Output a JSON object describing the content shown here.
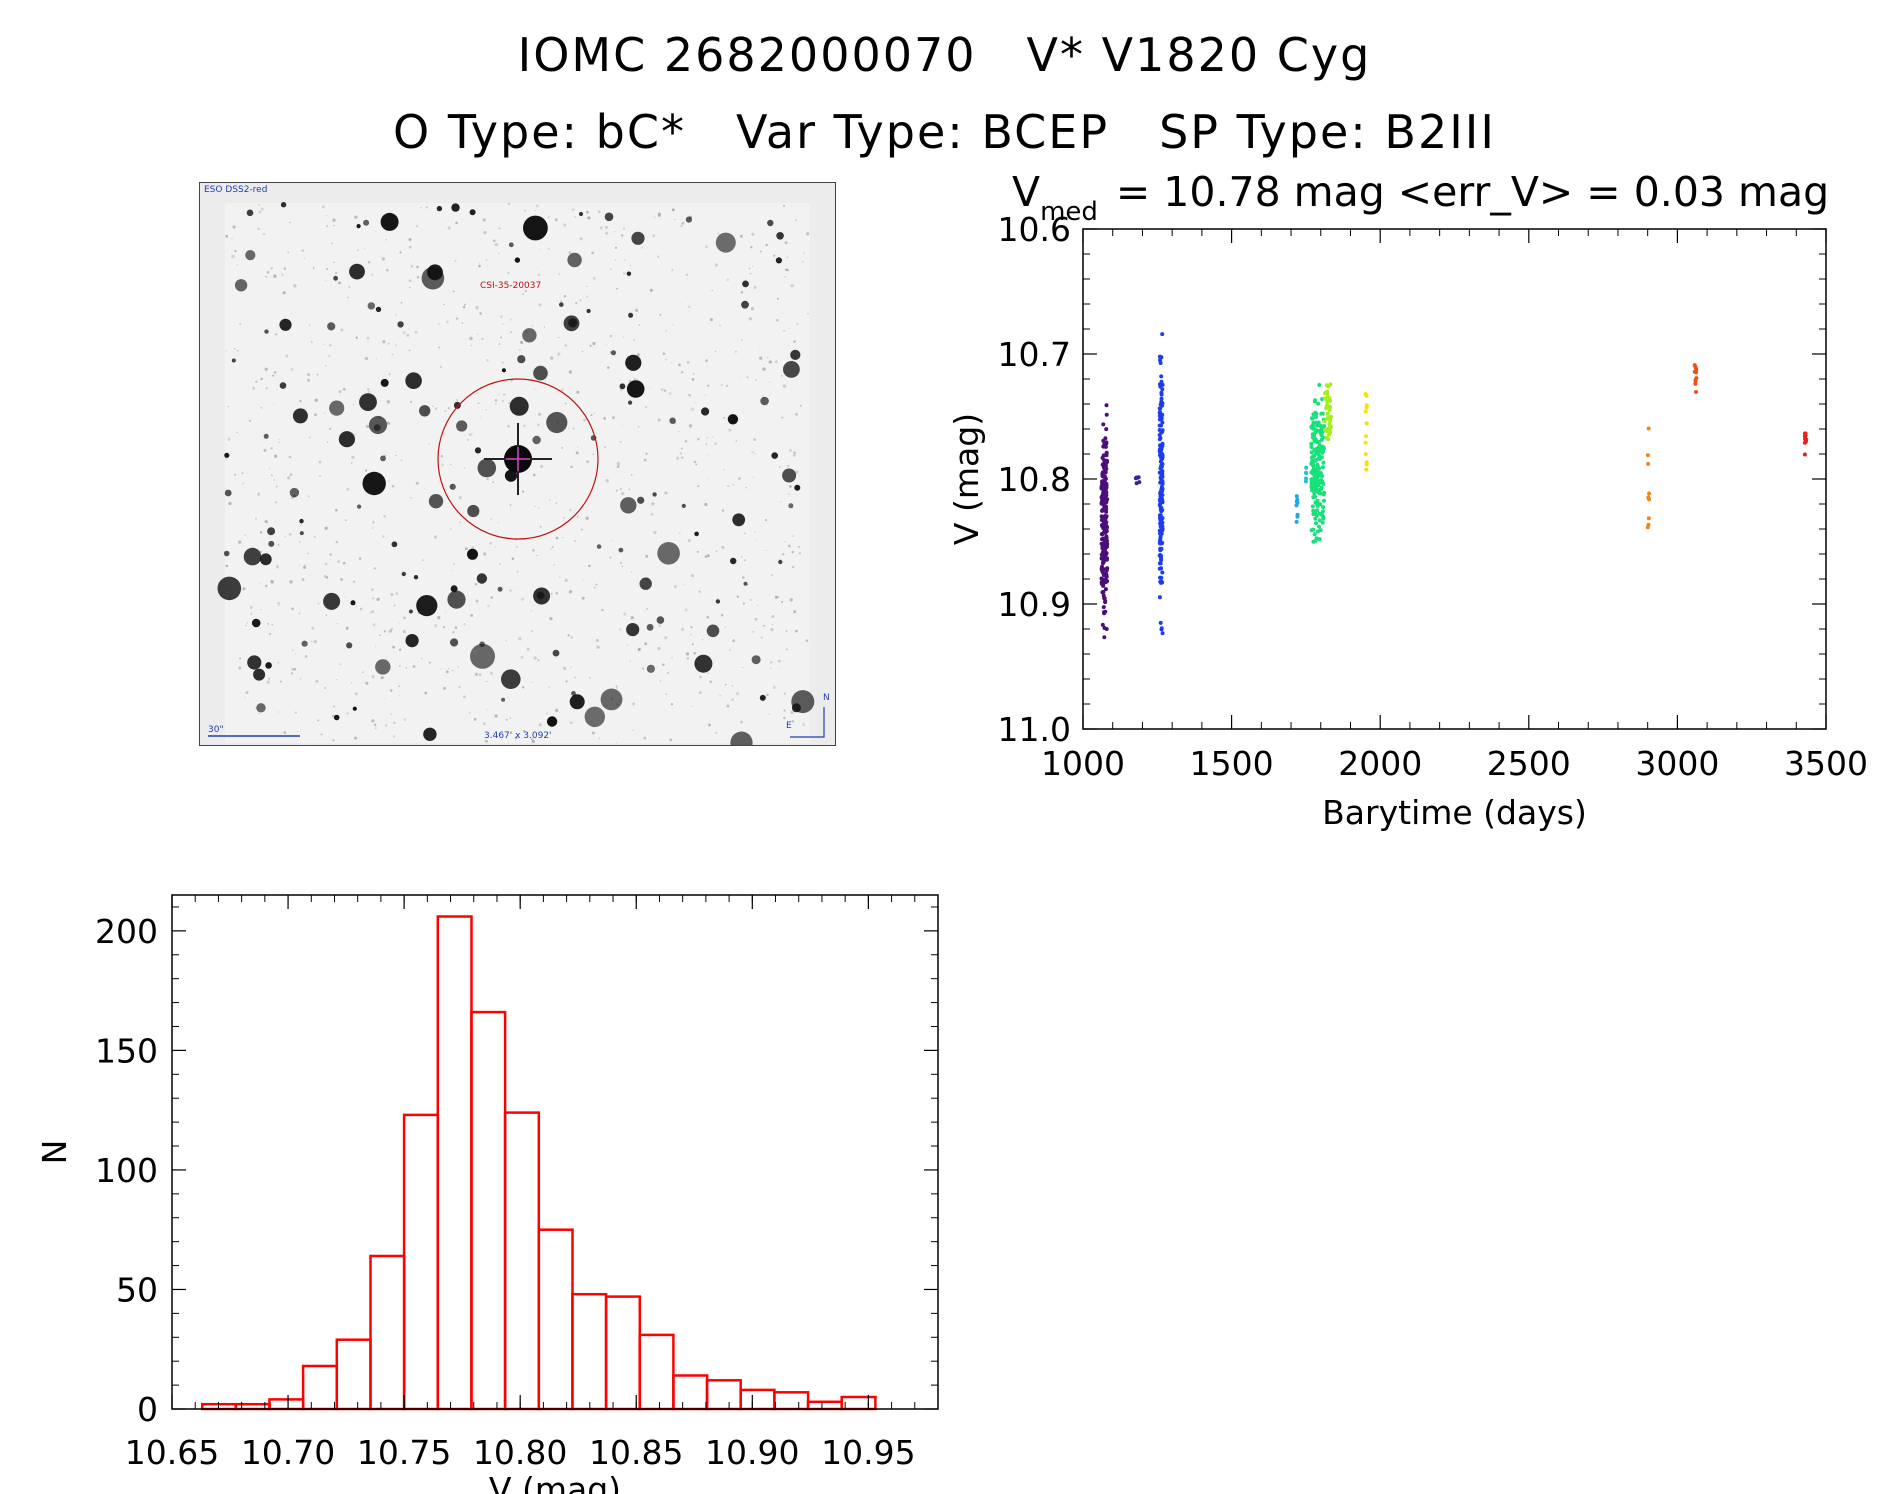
{
  "header": {
    "line1_a": "IOMC 2682000070",
    "line1_b": "V* V1820 Cyg",
    "line2_a": "O Type: bC*",
    "line2_b": "Var Type: BCEP",
    "line2_c": "SP Type: B2III"
  },
  "finder": {
    "survey_label": "ESO DSS2-red",
    "target_label": "CSI-35-20037",
    "scale_label": "30\"",
    "size_label": "3.467' x 3.092'",
    "compass_n": "N",
    "compass_e": "E"
  },
  "chart_data": [
    {
      "type": "scatter",
      "title_prefix": "V",
      "title_sub": "med",
      "title_rest": "= 10.78 mag <err_V> = 0.03 mag",
      "xlabel": "Barytime (days)",
      "ylabel": "V (mag)",
      "xlim": [
        1000,
        3500
      ],
      "ylim": [
        11.0,
        10.6
      ],
      "y_inverted": true,
      "xticks": [
        1000,
        1500,
        2000,
        2500,
        3000,
        3500
      ],
      "yticks": [
        10.6,
        10.7,
        10.8,
        10.9,
        11.0
      ],
      "ytick_labels": [
        "10.6",
        "10.7",
        "10.8",
        "10.9",
        "11.0"
      ],
      "points_colored_by_time": true,
      "groups": [
        {
          "x_range": [
            1062,
            1082
          ],
          "y_range": [
            10.715,
            10.95
          ],
          "n": 220,
          "color": "#4b0f7a"
        },
        {
          "x_range": [
            1178,
            1190
          ],
          "y_range": [
            10.795,
            10.81
          ],
          "n": 6,
          "color": "#3a1fa0"
        },
        {
          "x_range": [
            1258,
            1268
          ],
          "y_range": [
            10.665,
            10.95
          ],
          "n": 180,
          "color": "#1c3cf0"
        },
        {
          "x_range": [
            1718,
            1722
          ],
          "y_range": [
            10.8,
            10.85
          ],
          "n": 8,
          "color": "#1fa8e8"
        },
        {
          "x_range": [
            1748,
            1752
          ],
          "y_range": [
            10.785,
            10.815
          ],
          "n": 5,
          "color": "#17c9cf"
        },
        {
          "x_range": [
            1768,
            1812
          ],
          "y_range": [
            10.715,
            10.87
          ],
          "n": 200,
          "color": "#18e07a"
        },
        {
          "x_range": [
            1812,
            1835
          ],
          "y_range": [
            10.705,
            10.79
          ],
          "n": 40,
          "color": "#a6ee1a"
        },
        {
          "x_range": [
            1950,
            1955
          ],
          "y_range": [
            10.705,
            10.82
          ],
          "n": 12,
          "color": "#f3e20e"
        },
        {
          "x_range": [
            2900,
            2906
          ],
          "y_range": [
            10.745,
            10.87
          ],
          "n": 9,
          "color": "#f08618"
        },
        {
          "x_range": [
            3058,
            3064
          ],
          "y_range": [
            10.7,
            10.745
          ],
          "n": 10,
          "color": "#f05018"
        },
        {
          "x_range": [
            3428,
            3434
          ],
          "y_range": [
            10.755,
            10.785
          ],
          "n": 10,
          "color": "#e8201a"
        }
      ]
    },
    {
      "type": "bar",
      "subtype": "histogram",
      "xlabel": "V (mag)",
      "ylabel": "N",
      "xlim": [
        10.65,
        10.98
      ],
      "ylim": [
        0,
        215
      ],
      "xticks": [
        10.65,
        10.7,
        10.75,
        10.8,
        10.85,
        10.9,
        10.95
      ],
      "xtick_labels": [
        "10.65",
        "10.70",
        "10.75",
        "10.80",
        "10.85",
        "10.90",
        "10.95"
      ],
      "yticks": [
        0,
        50,
        100,
        150,
        200
      ],
      "bin_width": 0.0145,
      "bin_edges_start": 10.663,
      "values": [
        2,
        2,
        4,
        18,
        29,
        64,
        123,
        206,
        166,
        124,
        75,
        48,
        47,
        31,
        14,
        12,
        8,
        7,
        3,
        5
      ],
      "bar_color": "#ff0000"
    }
  ],
  "colors": {
    "hist": "#ff0000",
    "target_circle": "#c01010",
    "finder_text": "#1f3fb0"
  }
}
